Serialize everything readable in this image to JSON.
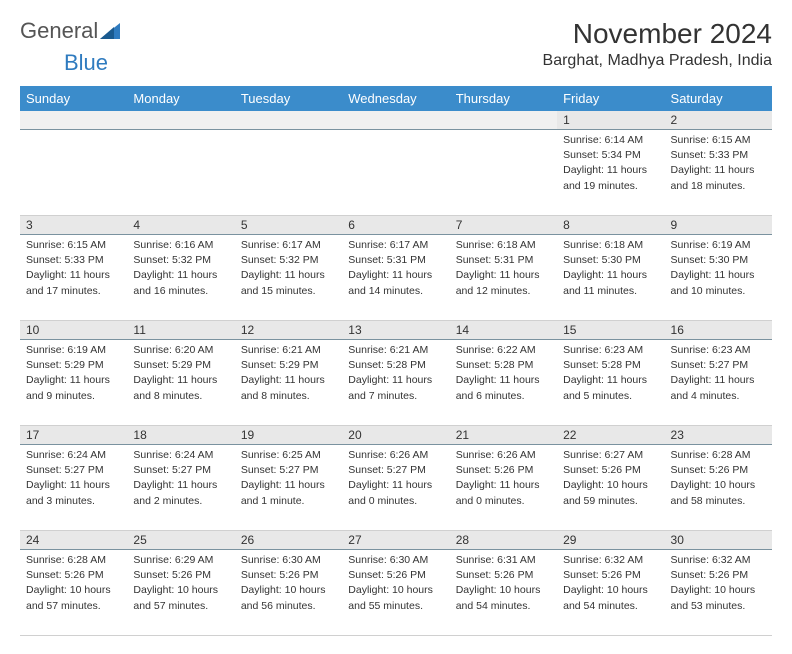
{
  "logo": {
    "text1": "General",
    "text2": "Blue"
  },
  "title": "November 2024",
  "location": "Barghat, Madhya Pradesh, India",
  "colors": {
    "header_bg": "#3b8ccb",
    "header_text": "#ffffff",
    "daynum_bg": "#e8e8e8",
    "daynum_border": "#7a929f",
    "text": "#333333",
    "logo_gray": "#555555",
    "logo_blue": "#2f7bbf"
  },
  "weekdays": [
    "Sunday",
    "Monday",
    "Tuesday",
    "Wednesday",
    "Thursday",
    "Friday",
    "Saturday"
  ],
  "weeks": [
    [
      null,
      null,
      null,
      null,
      null,
      {
        "n": "1",
        "sr": "Sunrise: 6:14 AM",
        "ss": "Sunset: 5:34 PM",
        "dl1": "Daylight: 11 hours",
        "dl2": "and 19 minutes."
      },
      {
        "n": "2",
        "sr": "Sunrise: 6:15 AM",
        "ss": "Sunset: 5:33 PM",
        "dl1": "Daylight: 11 hours",
        "dl2": "and 18 minutes."
      }
    ],
    [
      {
        "n": "3",
        "sr": "Sunrise: 6:15 AM",
        "ss": "Sunset: 5:33 PM",
        "dl1": "Daylight: 11 hours",
        "dl2": "and 17 minutes."
      },
      {
        "n": "4",
        "sr": "Sunrise: 6:16 AM",
        "ss": "Sunset: 5:32 PM",
        "dl1": "Daylight: 11 hours",
        "dl2": "and 16 minutes."
      },
      {
        "n": "5",
        "sr": "Sunrise: 6:17 AM",
        "ss": "Sunset: 5:32 PM",
        "dl1": "Daylight: 11 hours",
        "dl2": "and 15 minutes."
      },
      {
        "n": "6",
        "sr": "Sunrise: 6:17 AM",
        "ss": "Sunset: 5:31 PM",
        "dl1": "Daylight: 11 hours",
        "dl2": "and 14 minutes."
      },
      {
        "n": "7",
        "sr": "Sunrise: 6:18 AM",
        "ss": "Sunset: 5:31 PM",
        "dl1": "Daylight: 11 hours",
        "dl2": "and 12 minutes."
      },
      {
        "n": "8",
        "sr": "Sunrise: 6:18 AM",
        "ss": "Sunset: 5:30 PM",
        "dl1": "Daylight: 11 hours",
        "dl2": "and 11 minutes."
      },
      {
        "n": "9",
        "sr": "Sunrise: 6:19 AM",
        "ss": "Sunset: 5:30 PM",
        "dl1": "Daylight: 11 hours",
        "dl2": "and 10 minutes."
      }
    ],
    [
      {
        "n": "10",
        "sr": "Sunrise: 6:19 AM",
        "ss": "Sunset: 5:29 PM",
        "dl1": "Daylight: 11 hours",
        "dl2": "and 9 minutes."
      },
      {
        "n": "11",
        "sr": "Sunrise: 6:20 AM",
        "ss": "Sunset: 5:29 PM",
        "dl1": "Daylight: 11 hours",
        "dl2": "and 8 minutes."
      },
      {
        "n": "12",
        "sr": "Sunrise: 6:21 AM",
        "ss": "Sunset: 5:29 PM",
        "dl1": "Daylight: 11 hours",
        "dl2": "and 8 minutes."
      },
      {
        "n": "13",
        "sr": "Sunrise: 6:21 AM",
        "ss": "Sunset: 5:28 PM",
        "dl1": "Daylight: 11 hours",
        "dl2": "and 7 minutes."
      },
      {
        "n": "14",
        "sr": "Sunrise: 6:22 AM",
        "ss": "Sunset: 5:28 PM",
        "dl1": "Daylight: 11 hours",
        "dl2": "and 6 minutes."
      },
      {
        "n": "15",
        "sr": "Sunrise: 6:23 AM",
        "ss": "Sunset: 5:28 PM",
        "dl1": "Daylight: 11 hours",
        "dl2": "and 5 minutes."
      },
      {
        "n": "16",
        "sr": "Sunrise: 6:23 AM",
        "ss": "Sunset: 5:27 PM",
        "dl1": "Daylight: 11 hours",
        "dl2": "and 4 minutes."
      }
    ],
    [
      {
        "n": "17",
        "sr": "Sunrise: 6:24 AM",
        "ss": "Sunset: 5:27 PM",
        "dl1": "Daylight: 11 hours",
        "dl2": "and 3 minutes."
      },
      {
        "n": "18",
        "sr": "Sunrise: 6:24 AM",
        "ss": "Sunset: 5:27 PM",
        "dl1": "Daylight: 11 hours",
        "dl2": "and 2 minutes."
      },
      {
        "n": "19",
        "sr": "Sunrise: 6:25 AM",
        "ss": "Sunset: 5:27 PM",
        "dl1": "Daylight: 11 hours",
        "dl2": "and 1 minute."
      },
      {
        "n": "20",
        "sr": "Sunrise: 6:26 AM",
        "ss": "Sunset: 5:27 PM",
        "dl1": "Daylight: 11 hours",
        "dl2": "and 0 minutes."
      },
      {
        "n": "21",
        "sr": "Sunrise: 6:26 AM",
        "ss": "Sunset: 5:26 PM",
        "dl1": "Daylight: 11 hours",
        "dl2": "and 0 minutes."
      },
      {
        "n": "22",
        "sr": "Sunrise: 6:27 AM",
        "ss": "Sunset: 5:26 PM",
        "dl1": "Daylight: 10 hours",
        "dl2": "and 59 minutes."
      },
      {
        "n": "23",
        "sr": "Sunrise: 6:28 AM",
        "ss": "Sunset: 5:26 PM",
        "dl1": "Daylight: 10 hours",
        "dl2": "and 58 minutes."
      }
    ],
    [
      {
        "n": "24",
        "sr": "Sunrise: 6:28 AM",
        "ss": "Sunset: 5:26 PM",
        "dl1": "Daylight: 10 hours",
        "dl2": "and 57 minutes."
      },
      {
        "n": "25",
        "sr": "Sunrise: 6:29 AM",
        "ss": "Sunset: 5:26 PM",
        "dl1": "Daylight: 10 hours",
        "dl2": "and 57 minutes."
      },
      {
        "n": "26",
        "sr": "Sunrise: 6:30 AM",
        "ss": "Sunset: 5:26 PM",
        "dl1": "Daylight: 10 hours",
        "dl2": "and 56 minutes."
      },
      {
        "n": "27",
        "sr": "Sunrise: 6:30 AM",
        "ss": "Sunset: 5:26 PM",
        "dl1": "Daylight: 10 hours",
        "dl2": "and 55 minutes."
      },
      {
        "n": "28",
        "sr": "Sunrise: 6:31 AM",
        "ss": "Sunset: 5:26 PM",
        "dl1": "Daylight: 10 hours",
        "dl2": "and 54 minutes."
      },
      {
        "n": "29",
        "sr": "Sunrise: 6:32 AM",
        "ss": "Sunset: 5:26 PM",
        "dl1": "Daylight: 10 hours",
        "dl2": "and 54 minutes."
      },
      {
        "n": "30",
        "sr": "Sunrise: 6:32 AM",
        "ss": "Sunset: 5:26 PM",
        "dl1": "Daylight: 10 hours",
        "dl2": "and 53 minutes."
      }
    ]
  ]
}
